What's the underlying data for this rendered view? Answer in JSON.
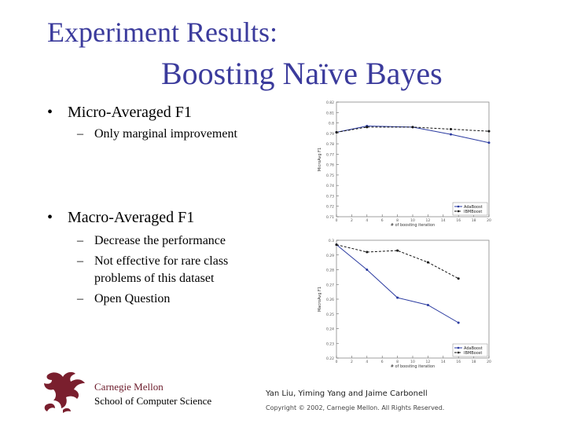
{
  "slide": {
    "title_line1": "Experiment Results:",
    "title_line2": "Boosting Naïve Bayes",
    "bullets": [
      {
        "marker": "•",
        "text": "Micro-Averaged F1"
      },
      {
        "marker": "•",
        "text": "Macro-Averaged F1"
      }
    ],
    "micro_sub": [
      {
        "marker": "–",
        "text": "Only marginal improvement"
      }
    ],
    "macro_sub": [
      {
        "marker": "–",
        "text": "Decrease the performance"
      },
      {
        "marker": "–",
        "text": "Not effective for rare class"
      },
      {
        "marker": "",
        "text": "problems of this dataset"
      },
      {
        "marker": "–",
        "text": "Open Question"
      }
    ],
    "footer": {
      "cmu_line1": "Carnegie Mellon",
      "cmu_line2": "School of Computer Science",
      "authors": "Yan Liu, Yiming Yang and Jaime Carbonell",
      "copyright": "Copyright © 2002, Carnegie Mellon. All Rights Reserved."
    },
    "colors": {
      "title": "#3b3b9c",
      "adaboost": "#2a3aa0",
      "ibmboost": "#111111",
      "logo": "#7a1f2e"
    }
  },
  "chart_data": [
    {
      "type": "line",
      "title": "",
      "xlabel": "# of boosting iteration",
      "ylabel": "MicroAvg F1",
      "x": [
        0,
        4,
        10,
        15,
        20
      ],
      "xticks": [
        0,
        2,
        4,
        6,
        8,
        10,
        12,
        14,
        16,
        18,
        20
      ],
      "ylim": [
        0.71,
        0.82
      ],
      "yticks": [
        0.71,
        0.72,
        0.73,
        0.74,
        0.75,
        0.76,
        0.77,
        0.78,
        0.79,
        0.8,
        0.81,
        0.82
      ],
      "ytick_labels": [
        "0.71",
        "0.72",
        "0.73",
        "0.74",
        "0.75",
        "0.76",
        "0.77",
        "0.78",
        "0.79",
        "0.8",
        "0.81",
        "0.82"
      ],
      "series": [
        {
          "name": "AdaBoost",
          "values": [
            0.791,
            0.797,
            0.796,
            0.789,
            0.781
          ]
        },
        {
          "name": "IBMBoost",
          "values": [
            0.791,
            0.796,
            0.796,
            0.794,
            0.792
          ]
        }
      ],
      "legend_position": "bottom-right"
    },
    {
      "type": "line",
      "title": "",
      "xlabel": "# of boosting iteration",
      "ylabel": "MacroAvg F1",
      "x": [
        0,
        4,
        8,
        12,
        16,
        20
      ],
      "xticks": [
        0,
        2,
        4,
        6,
        8,
        10,
        12,
        14,
        16,
        18,
        20
      ],
      "ylim": [
        0.22,
        0.3
      ],
      "yticks": [
        0.22,
        0.23,
        0.24,
        0.25,
        0.26,
        0.27,
        0.28,
        0.29,
        0.3
      ],
      "ytick_labels": [
        "0.22",
        "0.23",
        "0.24",
        "0.25",
        "0.26",
        "0.27",
        "0.28",
        "0.29",
        "0.3"
      ],
      "series": [
        {
          "name": "AdaBoost",
          "values": [
            0.297,
            0.28,
            0.261,
            0.256,
            0.244,
            null
          ]
        },
        {
          "name": "IBMBoost",
          "values": [
            0.297,
            0.292,
            0.293,
            0.285,
            0.274,
            null
          ]
        }
      ],
      "legend_position": "bottom-right"
    }
  ]
}
